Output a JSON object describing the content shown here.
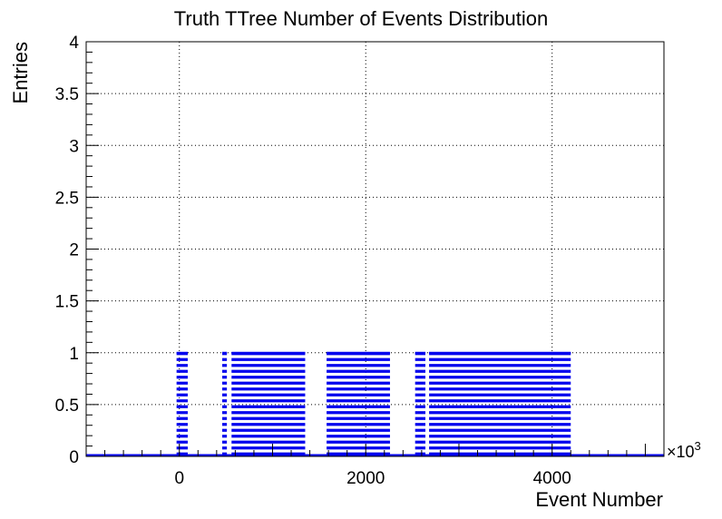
{
  "chart_data": {
    "type": "bar",
    "title": "Truth TTree Number of Events Distribution",
    "xlabel": "Event Number",
    "ylabel": "Entries",
    "x_multiplier": "×10",
    "x_multiplier_exp": "3",
    "xlim": [
      -1000,
      5200
    ],
    "ylim": [
      0,
      4
    ],
    "x_ticks": [
      0,
      2000,
      4000
    ],
    "y_ticks": [
      0,
      0.5,
      1,
      1.5,
      2,
      2.5,
      3,
      3.5,
      4
    ],
    "grid": true,
    "series": [
      {
        "color": "#0000ee",
        "value": 1,
        "filled_ranges": [
          [
            -30,
            90
          ],
          [
            460,
            510
          ],
          [
            560,
            1350
          ],
          [
            1580,
            2260
          ],
          [
            2530,
            2640
          ],
          [
            2680,
            4200
          ]
        ]
      }
    ]
  }
}
